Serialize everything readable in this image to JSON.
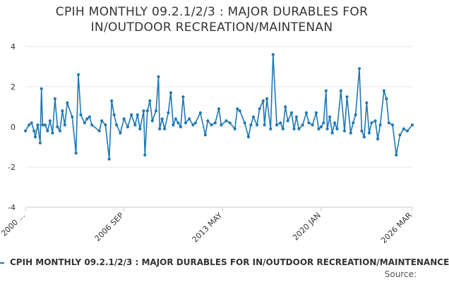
{
  "title_line1": "CPIH MONTHLY 09.2.1/2/3 : MAJOR DURABLES FOR",
  "title_line2": "IN/OUTDOOR RECREATION/MAINTENAN",
  "legend_label": "CPIH MONTHLY 09.2.1/2/3 : MAJOR DURABLES FOR IN/OUTDOOR RECREATION/MAINTENANCE",
  "source_label": "Source:",
  "colors": {
    "series": "#1f78b4",
    "grid": "#e6e6e6",
    "axis": "#cccccc",
    "text": "#333333"
  },
  "chart_data": {
    "type": "line",
    "title": "CPIH MONTHLY 09.2.1/2/3 : MAJOR DURABLES FOR IN/OUTDOOR RECREATION/MAINTENAN",
    "xlabel": "",
    "ylabel": "",
    "ylim": [
      -4,
      4
    ],
    "yticks": [
      -4,
      -2,
      0,
      2,
      4
    ],
    "ytick_labels": [
      "-4",
      "-2",
      "0",
      "2",
      "4"
    ],
    "xlim": [
      "2000-01",
      "2026-03"
    ],
    "xticks": [
      "2000-01",
      "2006-09",
      "2013-05",
      "2020-01",
      "2026-03"
    ],
    "xtick_labels": [
      "2000 ...",
      "2006 SEP",
      "2013 MAY",
      "2020 JAN",
      "2026 MAR"
    ],
    "grid": true,
    "legend": "bottom",
    "series": [
      {
        "name": "CPIH MONTHLY 09.2.1/2/3 : MAJOR DURABLES FOR IN/OUTDOOR RECREATION/MAINTENANCE",
        "points": [
          [
            "2000-01",
            -0.2
          ],
          [
            "2000-04",
            0.1
          ],
          [
            "2000-06",
            0.2
          ],
          [
            "2000-08",
            -0.2
          ],
          [
            "2000-09",
            -0.5
          ],
          [
            "2000-11",
            0.1
          ],
          [
            "2001-01",
            -0.8
          ],
          [
            "2001-02",
            1.9
          ],
          [
            "2001-03",
            0.1
          ],
          [
            "2001-05",
            0.1
          ],
          [
            "2001-07",
            -0.2
          ],
          [
            "2001-09",
            0.3
          ],
          [
            "2001-11",
            -0.3
          ],
          [
            "2002-01",
            1.4
          ],
          [
            "2002-03",
            0.0
          ],
          [
            "2002-05",
            -0.2
          ],
          [
            "2002-07",
            0.8
          ],
          [
            "2002-09",
            0.1
          ],
          [
            "2002-11",
            1.2
          ],
          [
            "2003-03",
            0.5
          ],
          [
            "2003-06",
            -1.3
          ],
          [
            "2003-08",
            2.6
          ],
          [
            "2003-10",
            0.6
          ],
          [
            "2004-01",
            0.2
          ],
          [
            "2004-03",
            0.4
          ],
          [
            "2004-05",
            0.5
          ],
          [
            "2004-07",
            0.1
          ],
          [
            "2005-01",
            -0.2
          ],
          [
            "2005-03",
            0.3
          ],
          [
            "2005-06",
            0.1
          ],
          [
            "2005-09",
            -1.6
          ],
          [
            "2005-11",
            1.3
          ],
          [
            "2006-01",
            0.6
          ],
          [
            "2006-03",
            0.1
          ],
          [
            "2006-06",
            -0.3
          ],
          [
            "2006-09",
            0.4
          ],
          [
            "2006-12",
            0.0
          ],
          [
            "2007-03",
            0.6
          ],
          [
            "2007-06",
            0.1
          ],
          [
            "2007-08",
            0.6
          ],
          [
            "2007-10",
            -0.1
          ],
          [
            "2008-01",
            0.8
          ],
          [
            "2008-02",
            -1.4
          ],
          [
            "2008-04",
            0.8
          ],
          [
            "2008-06",
            1.3
          ],
          [
            "2008-08",
            0.3
          ],
          [
            "2008-11",
            0.8
          ],
          [
            "2009-01",
            2.5
          ],
          [
            "2009-02",
            -0.1
          ],
          [
            "2009-04",
            0.4
          ],
          [
            "2009-06",
            -0.1
          ],
          [
            "2009-09",
            0.7
          ],
          [
            "2009-11",
            1.7
          ],
          [
            "2010-01",
            0.1
          ],
          [
            "2010-03",
            0.4
          ],
          [
            "2010-05",
            0.2
          ],
          [
            "2010-07",
            0.0
          ],
          [
            "2010-09",
            1.5
          ],
          [
            "2010-11",
            0.2
          ],
          [
            "2011-02",
            0.4
          ],
          [
            "2011-05",
            0.1
          ],
          [
            "2011-07",
            0.2
          ],
          [
            "2011-11",
            0.7
          ],
          [
            "2012-03",
            -0.4
          ],
          [
            "2012-05",
            0.3
          ],
          [
            "2012-08",
            0.1
          ],
          [
            "2012-11",
            0.2
          ],
          [
            "2013-02",
            0.9
          ],
          [
            "2013-04",
            0.1
          ],
          [
            "2013-08",
            0.3
          ],
          [
            "2013-11",
            0.2
          ],
          [
            "2014-03",
            -0.1
          ],
          [
            "2014-05",
            0.9
          ],
          [
            "2014-07",
            0.8
          ],
          [
            "2014-11",
            0.2
          ],
          [
            "2015-02",
            -0.5
          ],
          [
            "2015-04",
            0.1
          ],
          [
            "2015-06",
            0.5
          ],
          [
            "2015-09",
            0.1
          ],
          [
            "2015-11",
            0.9
          ],
          [
            "2016-02",
            1.3
          ],
          [
            "2016-03",
            0.1
          ],
          [
            "2016-05",
            1.4
          ],
          [
            "2016-08",
            -0.1
          ],
          [
            "2016-10",
            3.6
          ],
          [
            "2017-01",
            0.1
          ],
          [
            "2017-04",
            0.2
          ],
          [
            "2017-06",
            -0.1
          ],
          [
            "2017-08",
            1.0
          ],
          [
            "2017-10",
            0.3
          ],
          [
            "2018-01",
            0.7
          ],
          [
            "2018-03",
            -0.1
          ],
          [
            "2018-05",
            0.5
          ],
          [
            "2018-07",
            -0.1
          ],
          [
            "2018-10",
            0.1
          ],
          [
            "2019-01",
            0.7
          ],
          [
            "2019-03",
            0.2
          ],
          [
            "2019-06",
            0.1
          ],
          [
            "2019-09",
            0.7
          ],
          [
            "2019-11",
            -0.1
          ],
          [
            "2020-01",
            0.0
          ],
          [
            "2020-03",
            0.2
          ],
          [
            "2020-05",
            1.8
          ],
          [
            "2020-06",
            -0.1
          ],
          [
            "2020-08",
            0.5
          ],
          [
            "2020-10",
            -0.3
          ],
          [
            "2020-12",
            0.2
          ],
          [
            "2021-02",
            -0.1
          ],
          [
            "2021-05",
            1.8
          ],
          [
            "2021-08",
            -0.2
          ],
          [
            "2021-10",
            1.5
          ],
          [
            "2022-01",
            -0.3
          ],
          [
            "2022-03",
            0.2
          ],
          [
            "2022-05",
            0.6
          ],
          [
            "2022-08",
            2.9
          ],
          [
            "2022-10",
            -0.2
          ],
          [
            "2022-12",
            -0.5
          ],
          [
            "2023-02",
            1.2
          ],
          [
            "2023-04",
            -0.3
          ],
          [
            "2023-06",
            0.2
          ],
          [
            "2023-09",
            0.3
          ],
          [
            "2023-11",
            -0.6
          ],
          [
            "2024-01",
            0.1
          ],
          [
            "2024-04",
            1.8
          ],
          [
            "2024-06",
            1.4
          ],
          [
            "2024-08",
            0.2
          ],
          [
            "2024-11",
            0.1
          ],
          [
            "2025-02",
            -1.4
          ],
          [
            "2025-05",
            -0.4
          ],
          [
            "2025-08",
            -0.1
          ],
          [
            "2025-11",
            -0.2
          ],
          [
            "2026-03",
            0.1
          ]
        ]
      }
    ]
  }
}
